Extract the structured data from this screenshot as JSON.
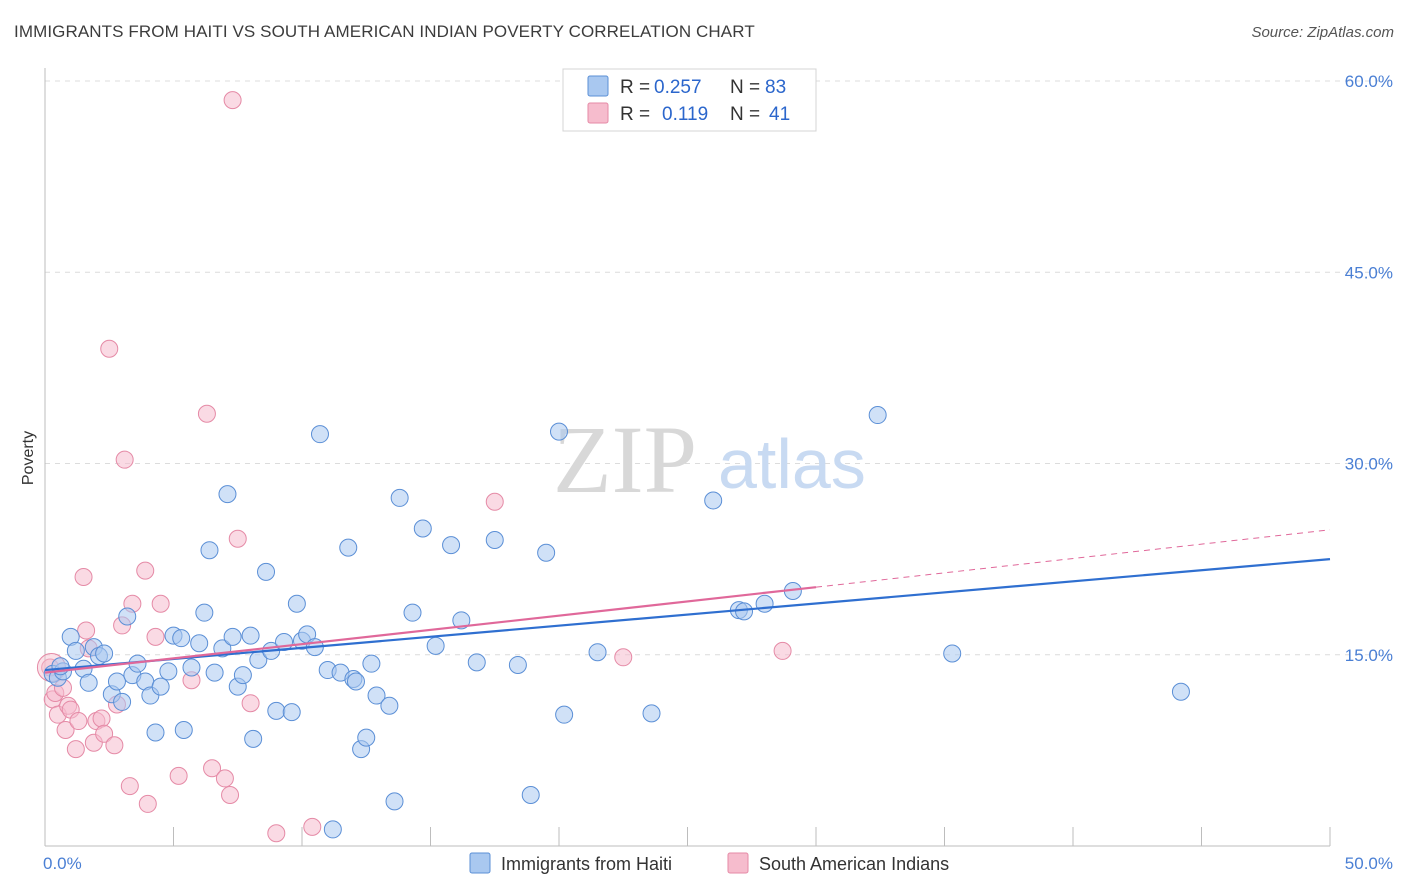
{
  "title": "IMMIGRANTS FROM HAITI VS SOUTH AMERICAN INDIAN POVERTY CORRELATION CHART",
  "source": "Source: ZipAtlas.com",
  "watermark": {
    "zip": "ZIP",
    "atlas": "atlas"
  },
  "colors": {
    "blue_fill": "#a9c8f0",
    "blue_stroke": "#5b8fd6",
    "blue_line": "#2f6fd0",
    "pink_fill": "#f6bccd",
    "pink_stroke": "#e58aa6",
    "pink_line": "#e0689a",
    "axis_text": "#4a7fd4",
    "grid": "#dcdcdc"
  },
  "legend": {
    "series1": {
      "r_label": "R =",
      "r_value": "0.257",
      "n_label": "N =",
      "n_value": "83"
    },
    "series2": {
      "r_label": "R =",
      "r_value": "0.119",
      "n_label": "N =",
      "n_value": "41"
    }
  },
  "chart_data": {
    "type": "scatter",
    "title": "IMMIGRANTS FROM HAITI VS SOUTH AMERICAN INDIAN POVERTY CORRELATION CHART",
    "xlabel": "",
    "ylabel": "Poverty",
    "xlim": [
      0,
      50
    ],
    "ylim": [
      0,
      60
    ],
    "x_tick_labels": [
      "0.0%",
      "50.0%"
    ],
    "y_ticks": [
      15,
      30,
      45,
      60
    ],
    "y_tick_labels": [
      "15.0%",
      "30.0%",
      "45.0%",
      "60.0%"
    ],
    "series": [
      {
        "name": "Immigrants from Haiti",
        "color": "#5b8fd6",
        "trend": {
          "x0": 0,
          "y0": 13.8,
          "x1": 50,
          "y1": 22.5
        },
        "points": [
          [
            0.3,
            13.5
          ],
          [
            0.5,
            13.2
          ],
          [
            0.7,
            13.7
          ],
          [
            1.0,
            16.4
          ],
          [
            1.2,
            15.3
          ],
          [
            1.5,
            13.9
          ],
          [
            1.7,
            12.8
          ],
          [
            1.9,
            15.6
          ],
          [
            2.1,
            14.9
          ],
          [
            2.3,
            15.1
          ],
          [
            2.6,
            11.9
          ],
          [
            2.8,
            12.9
          ],
          [
            3.0,
            11.3
          ],
          [
            3.2,
            18.0
          ],
          [
            3.4,
            13.4
          ],
          [
            3.6,
            14.3
          ],
          [
            3.9,
            12.9
          ],
          [
            4.1,
            11.8
          ],
          [
            4.3,
            8.9
          ],
          [
            4.5,
            12.5
          ],
          [
            4.8,
            13.7
          ],
          [
            5.0,
            16.5
          ],
          [
            5.3,
            16.3
          ],
          [
            5.4,
            9.1
          ],
          [
            5.7,
            14.0
          ],
          [
            6.0,
            15.9
          ],
          [
            6.2,
            18.3
          ],
          [
            6.4,
            23.2
          ],
          [
            6.6,
            13.6
          ],
          [
            6.9,
            15.5
          ],
          [
            7.1,
            27.6
          ],
          [
            7.3,
            16.4
          ],
          [
            7.5,
            12.5
          ],
          [
            7.7,
            13.4
          ],
          [
            8.0,
            16.5
          ],
          [
            8.1,
            8.4
          ],
          [
            8.3,
            14.6
          ],
          [
            8.6,
            21.5
          ],
          [
            8.8,
            15.3
          ],
          [
            9.0,
            10.6
          ],
          [
            9.3,
            16.0
          ],
          [
            9.6,
            10.5
          ],
          [
            9.8,
            19.0
          ],
          [
            10.0,
            16.1
          ],
          [
            10.2,
            16.6
          ],
          [
            10.5,
            15.6
          ],
          [
            10.7,
            32.3
          ],
          [
            11.0,
            13.8
          ],
          [
            11.2,
            1.3
          ],
          [
            11.5,
            13.6
          ],
          [
            11.8,
            23.4
          ],
          [
            12.0,
            13.1
          ],
          [
            12.1,
            12.9
          ],
          [
            12.3,
            7.6
          ],
          [
            12.5,
            8.5
          ],
          [
            12.7,
            14.3
          ],
          [
            12.9,
            11.8
          ],
          [
            13.4,
            11.0
          ],
          [
            13.6,
            3.5
          ],
          [
            13.8,
            27.3
          ],
          [
            14.3,
            18.3
          ],
          [
            14.7,
            24.9
          ],
          [
            15.2,
            15.7
          ],
          [
            15.8,
            23.6
          ],
          [
            16.2,
            17.7
          ],
          [
            16.8,
            14.4
          ],
          [
            17.5,
            24.0
          ],
          [
            18.4,
            14.2
          ],
          [
            18.9,
            4.0
          ],
          [
            19.5,
            23.0
          ],
          [
            20.0,
            32.5
          ],
          [
            20.2,
            10.3
          ],
          [
            21.5,
            15.2
          ],
          [
            23.6,
            10.4
          ],
          [
            26.0,
            27.1
          ],
          [
            27.0,
            18.5
          ],
          [
            27.2,
            18.4
          ],
          [
            28.0,
            19.0
          ],
          [
            29.1,
            20.0
          ],
          [
            32.4,
            33.8
          ],
          [
            35.3,
            15.1
          ],
          [
            44.2,
            12.1
          ],
          [
            0.6,
            14.1
          ]
        ]
      },
      {
        "name": "South American Indians",
        "color": "#e58aa6",
        "trend": {
          "x0": 0,
          "y0": 13.6,
          "x1": 30,
          "y1": 20.3,
          "dash_x1": 50,
          "dash_y1": 24.8
        },
        "points": [
          [
            0.2,
            14.0
          ],
          [
            0.3,
            11.5
          ],
          [
            0.4,
            12.0
          ],
          [
            0.5,
            10.3
          ],
          [
            0.7,
            12.4
          ],
          [
            0.8,
            9.1
          ],
          [
            0.9,
            11.0
          ],
          [
            1.0,
            10.7
          ],
          [
            1.2,
            7.6
          ],
          [
            1.3,
            9.8
          ],
          [
            1.5,
            21.1
          ],
          [
            1.6,
            16.9
          ],
          [
            1.7,
            15.5
          ],
          [
            1.9,
            8.1
          ],
          [
            2.0,
            9.8
          ],
          [
            2.2,
            10.0
          ],
          [
            2.3,
            8.8
          ],
          [
            2.5,
            39.0
          ],
          [
            2.7,
            7.9
          ],
          [
            2.8,
            11.1
          ],
          [
            3.0,
            17.3
          ],
          [
            3.1,
            30.3
          ],
          [
            3.3,
            4.7
          ],
          [
            3.4,
            19.0
          ],
          [
            3.9,
            21.6
          ],
          [
            4.0,
            3.3
          ],
          [
            4.3,
            16.4
          ],
          [
            4.5,
            19.0
          ],
          [
            5.2,
            5.5
          ],
          [
            5.7,
            13.0
          ],
          [
            6.3,
            33.9
          ],
          [
            6.5,
            6.1
          ],
          [
            7.0,
            5.3
          ],
          [
            7.2,
            4.0
          ],
          [
            7.5,
            24.1
          ],
          [
            8.0,
            11.2
          ],
          [
            9.0,
            1.0
          ],
          [
            10.4,
            1.5
          ],
          [
            17.5,
            27.0
          ],
          [
            22.5,
            14.8
          ],
          [
            28.7,
            15.3
          ]
        ],
        "outlier": [
          7.3,
          58.5
        ]
      }
    ]
  },
  "bottom_legend": [
    "Immigrants from Haiti",
    "South American Indians"
  ]
}
